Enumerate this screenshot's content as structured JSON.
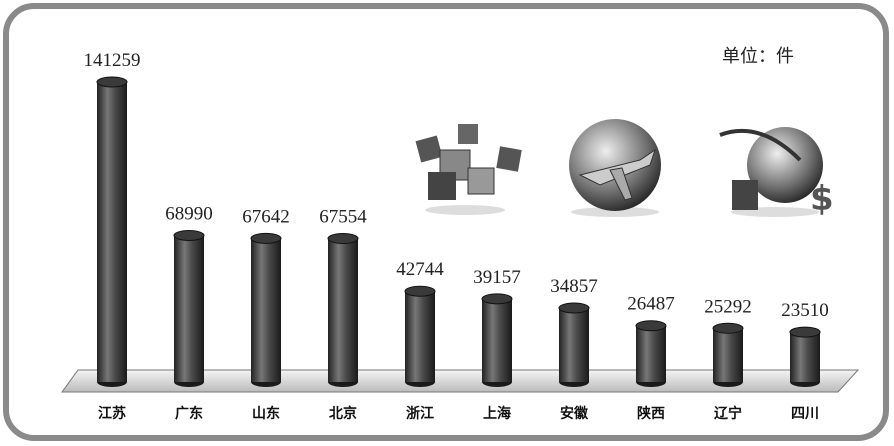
{
  "chart_data": {
    "type": "bar",
    "unit_label": "单位：件",
    "categories": [
      "江苏",
      "广东",
      "山东",
      "北京",
      "浙江",
      "上海",
      "安徽",
      "陕西",
      "辽宁",
      "四川"
    ],
    "values": [
      141259,
      68990,
      67642,
      67554,
      42744,
      39157,
      34857,
      26487,
      25292,
      23510
    ],
    "color": "#3a3a3a"
  }
}
